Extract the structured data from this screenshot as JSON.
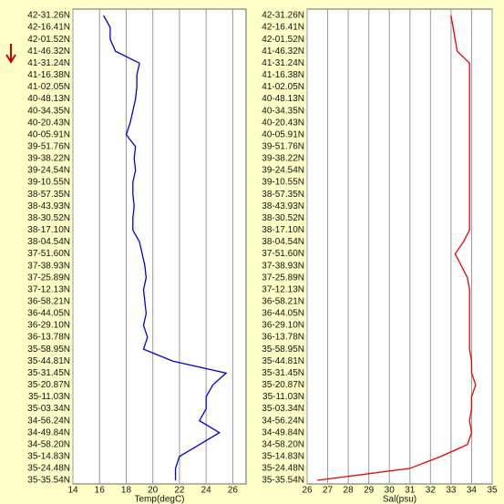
{
  "chart_data": [
    {
      "type": "line",
      "xlabel": "Temp(degC)",
      "categories": [
        "42-31.26N",
        "42-16.41N",
        "42-01.52N",
        "41-46.32N",
        "41-31.24N",
        "41-16.38N",
        "41-02.05N",
        "40-48.13N",
        "40-34.35N",
        "40-20.43N",
        "40-05.91N",
        "39-51.76N",
        "39-38.22N",
        "39-24.54N",
        "39-10.55N",
        "38-57.35N",
        "38-43.93N",
        "38-30.52N",
        "38-17.10N",
        "38-04.54N",
        "37-51.60N",
        "37-38.93N",
        "37-25.89N",
        "37-12.13N",
        "36-58.21N",
        "36-44.05N",
        "36-29.10N",
        "36-13.78N",
        "35-58.95N",
        "35-44.81N",
        "35-31.45N",
        "35-20.87N",
        "35-11.03N",
        "35-03.34N",
        "34-56.24N",
        "34-49.84N",
        "34-58.20N",
        "35-14.83N",
        "35-24.48N",
        "35-35.54N"
      ],
      "series": [
        {
          "name": "Temp",
          "color": "#0000dd",
          "values": [
            16.3,
            16.8,
            16.8,
            17.2,
            19.0,
            18.8,
            18.8,
            18.7,
            18.5,
            18.3,
            18.0,
            18.7,
            18.6,
            18.7,
            18.5,
            18.5,
            18.6,
            18.5,
            18.5,
            19.0,
            19.2,
            19.4,
            19.5,
            19.3,
            19.4,
            19.5,
            19.3,
            19.6,
            19.3,
            21.5,
            25.5,
            24.5,
            24.0,
            24.0,
            23.5,
            25.0,
            23.5,
            22.0,
            21.7,
            21.7
          ]
        }
      ],
      "xlim": [
        14,
        27
      ],
      "xticks": [
        14,
        16,
        18,
        20,
        22,
        24,
        26
      ],
      "grid": true
    },
    {
      "type": "line",
      "xlabel": "Sal(psu)",
      "categories": [
        "42-31.26N",
        "42-16.41N",
        "42-01.52N",
        "41-46.32N",
        "41-31.24N",
        "41-16.38N",
        "41-02.05N",
        "40-48.13N",
        "40-34.35N",
        "40-20.43N",
        "40-05.91N",
        "39-51.76N",
        "39-38.22N",
        "39-24.54N",
        "39-10.55N",
        "38-57.35N",
        "38-43.93N",
        "38-30.52N",
        "38-17.10N",
        "38-04.54N",
        "37-51.60N",
        "37-38.93N",
        "37-25.89N",
        "37-12.13N",
        "36-58.21N",
        "36-44.05N",
        "36-29.10N",
        "36-13.78N",
        "35-58.95N",
        "35-44.81N",
        "35-31.45N",
        "35-20.87N",
        "35-11.03N",
        "35-03.34N",
        "34-56.24N",
        "34-49.84N",
        "34-58.20N",
        "35-14.83N",
        "35-24.48N",
        "35-35.54N"
      ],
      "series": [
        {
          "name": "Sal",
          "color": "#ee0000",
          "values": [
            33.0,
            33.1,
            33.2,
            33.3,
            33.9,
            33.9,
            33.9,
            33.9,
            33.9,
            33.9,
            33.9,
            33.9,
            33.9,
            33.9,
            33.9,
            33.9,
            33.9,
            33.9,
            33.9,
            33.6,
            33.2,
            33.5,
            33.8,
            33.9,
            33.9,
            33.9,
            33.9,
            33.9,
            33.9,
            34.0,
            34.0,
            34.2,
            34.0,
            34.0,
            33.9,
            34.0,
            33.8,
            32.5,
            31.0,
            26.5
          ]
        }
      ],
      "xlim": [
        26,
        35
      ],
      "xticks": [
        26,
        27,
        28,
        29,
        30,
        31,
        32,
        33,
        34,
        35
      ],
      "grid": true
    }
  ]
}
